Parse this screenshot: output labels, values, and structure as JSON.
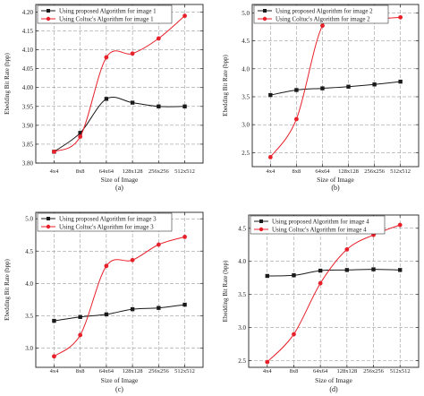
{
  "chart_data": [
    {
      "type": "line",
      "categories": [
        "4x4",
        "8x8",
        "64x64",
        "128x128",
        "256x256",
        "512x512"
      ],
      "series": [
        {
          "name": "Using proposed Algorithm for image 1",
          "values": [
            3.83,
            3.88,
            3.97,
            3.96,
            3.95,
            3.95
          ]
        },
        {
          "name": "Using Coltuc's Algorithm for image 1",
          "values": [
            3.83,
            3.87,
            4.08,
            4.09,
            4.13,
            4.19
          ]
        }
      ],
      "xlabel": "Size of Image",
      "ylabel": "Ebedding Bit Rate (bpp)",
      "ylim": [
        3.8,
        4.22
      ],
      "yticks": [
        "3.80",
        "3.85",
        "3.90",
        "3.95",
        "4.00",
        "4.05",
        "4.10",
        "4.15",
        "4.20"
      ],
      "panel_label": "(a)",
      "grid": true,
      "legend_position": "top-left"
    },
    {
      "type": "line",
      "categories": [
        "4x4",
        "8x8",
        "64x64",
        "128x128",
        "256x256",
        "512x512"
      ],
      "series": [
        {
          "name": "Using proposed Algorithm for image 2",
          "values": [
            3.53,
            3.62,
            3.65,
            3.68,
            3.72,
            3.77
          ]
        },
        {
          "name": "Using Coltuc's Algorithm for image 2",
          "values": [
            2.42,
            3.1,
            4.77,
            4.87,
            4.89,
            4.92
          ]
        }
      ],
      "xlabel": "Size of Image",
      "ylabel": "Ebedding Bit Rate (bpp)",
      "ylim": [
        2.25,
        5.15
      ],
      "yticks": [
        "2.5",
        "3.0",
        "3.5",
        "4.0",
        "4.5",
        "5.0"
      ],
      "panel_label": "(b)",
      "grid": true,
      "legend_position": "top-left"
    },
    {
      "type": "line",
      "categories": [
        "4x4",
        "8x8",
        "64x64",
        "128x128",
        "256x256",
        "512x512"
      ],
      "series": [
        {
          "name": "Using proposed Algorithm for image 3",
          "values": [
            3.42,
            3.48,
            3.52,
            3.6,
            3.62,
            3.67
          ]
        },
        {
          "name": "Using Coltuc's Algorithm for image 3",
          "values": [
            2.87,
            3.2,
            4.27,
            4.36,
            4.6,
            4.72
          ]
        }
      ],
      "xlabel": "Size of Image",
      "ylabel": "Ebedding Bit Rate (bpp)",
      "ylim": [
        2.7,
        5.1
      ],
      "yticks": [
        "3.0",
        "3.5",
        "4.0",
        "4.5",
        "5.0"
      ],
      "panel_label": "(c)",
      "grid": true,
      "legend_position": "top-left"
    },
    {
      "type": "line",
      "categories": [
        "4x4",
        "8x8",
        "64x64",
        "128x128",
        "256x256",
        "512x512"
      ],
      "series": [
        {
          "name": "Using proposed Algorithm for image 4",
          "values": [
            3.78,
            3.79,
            3.86,
            3.87,
            3.88,
            3.87
          ]
        },
        {
          "name": "Using Coltuc's Algorithm for image 4",
          "values": [
            2.48,
            2.9,
            3.67,
            4.18,
            4.4,
            4.55
          ]
        }
      ],
      "xlabel": "Size of Image",
      "ylabel": "Ebedding Bit Rate (bpp)",
      "ylim": [
        2.4,
        4.7
      ],
      "yticks": [
        "2.5",
        "3.0",
        "3.5",
        "4.0",
        "4.5"
      ],
      "panel_label": "(d)",
      "grid": true,
      "legend_position": "top-left"
    }
  ],
  "colors": {
    "proposed": "#1a1a1a",
    "coltuc": "#e8202a"
  }
}
